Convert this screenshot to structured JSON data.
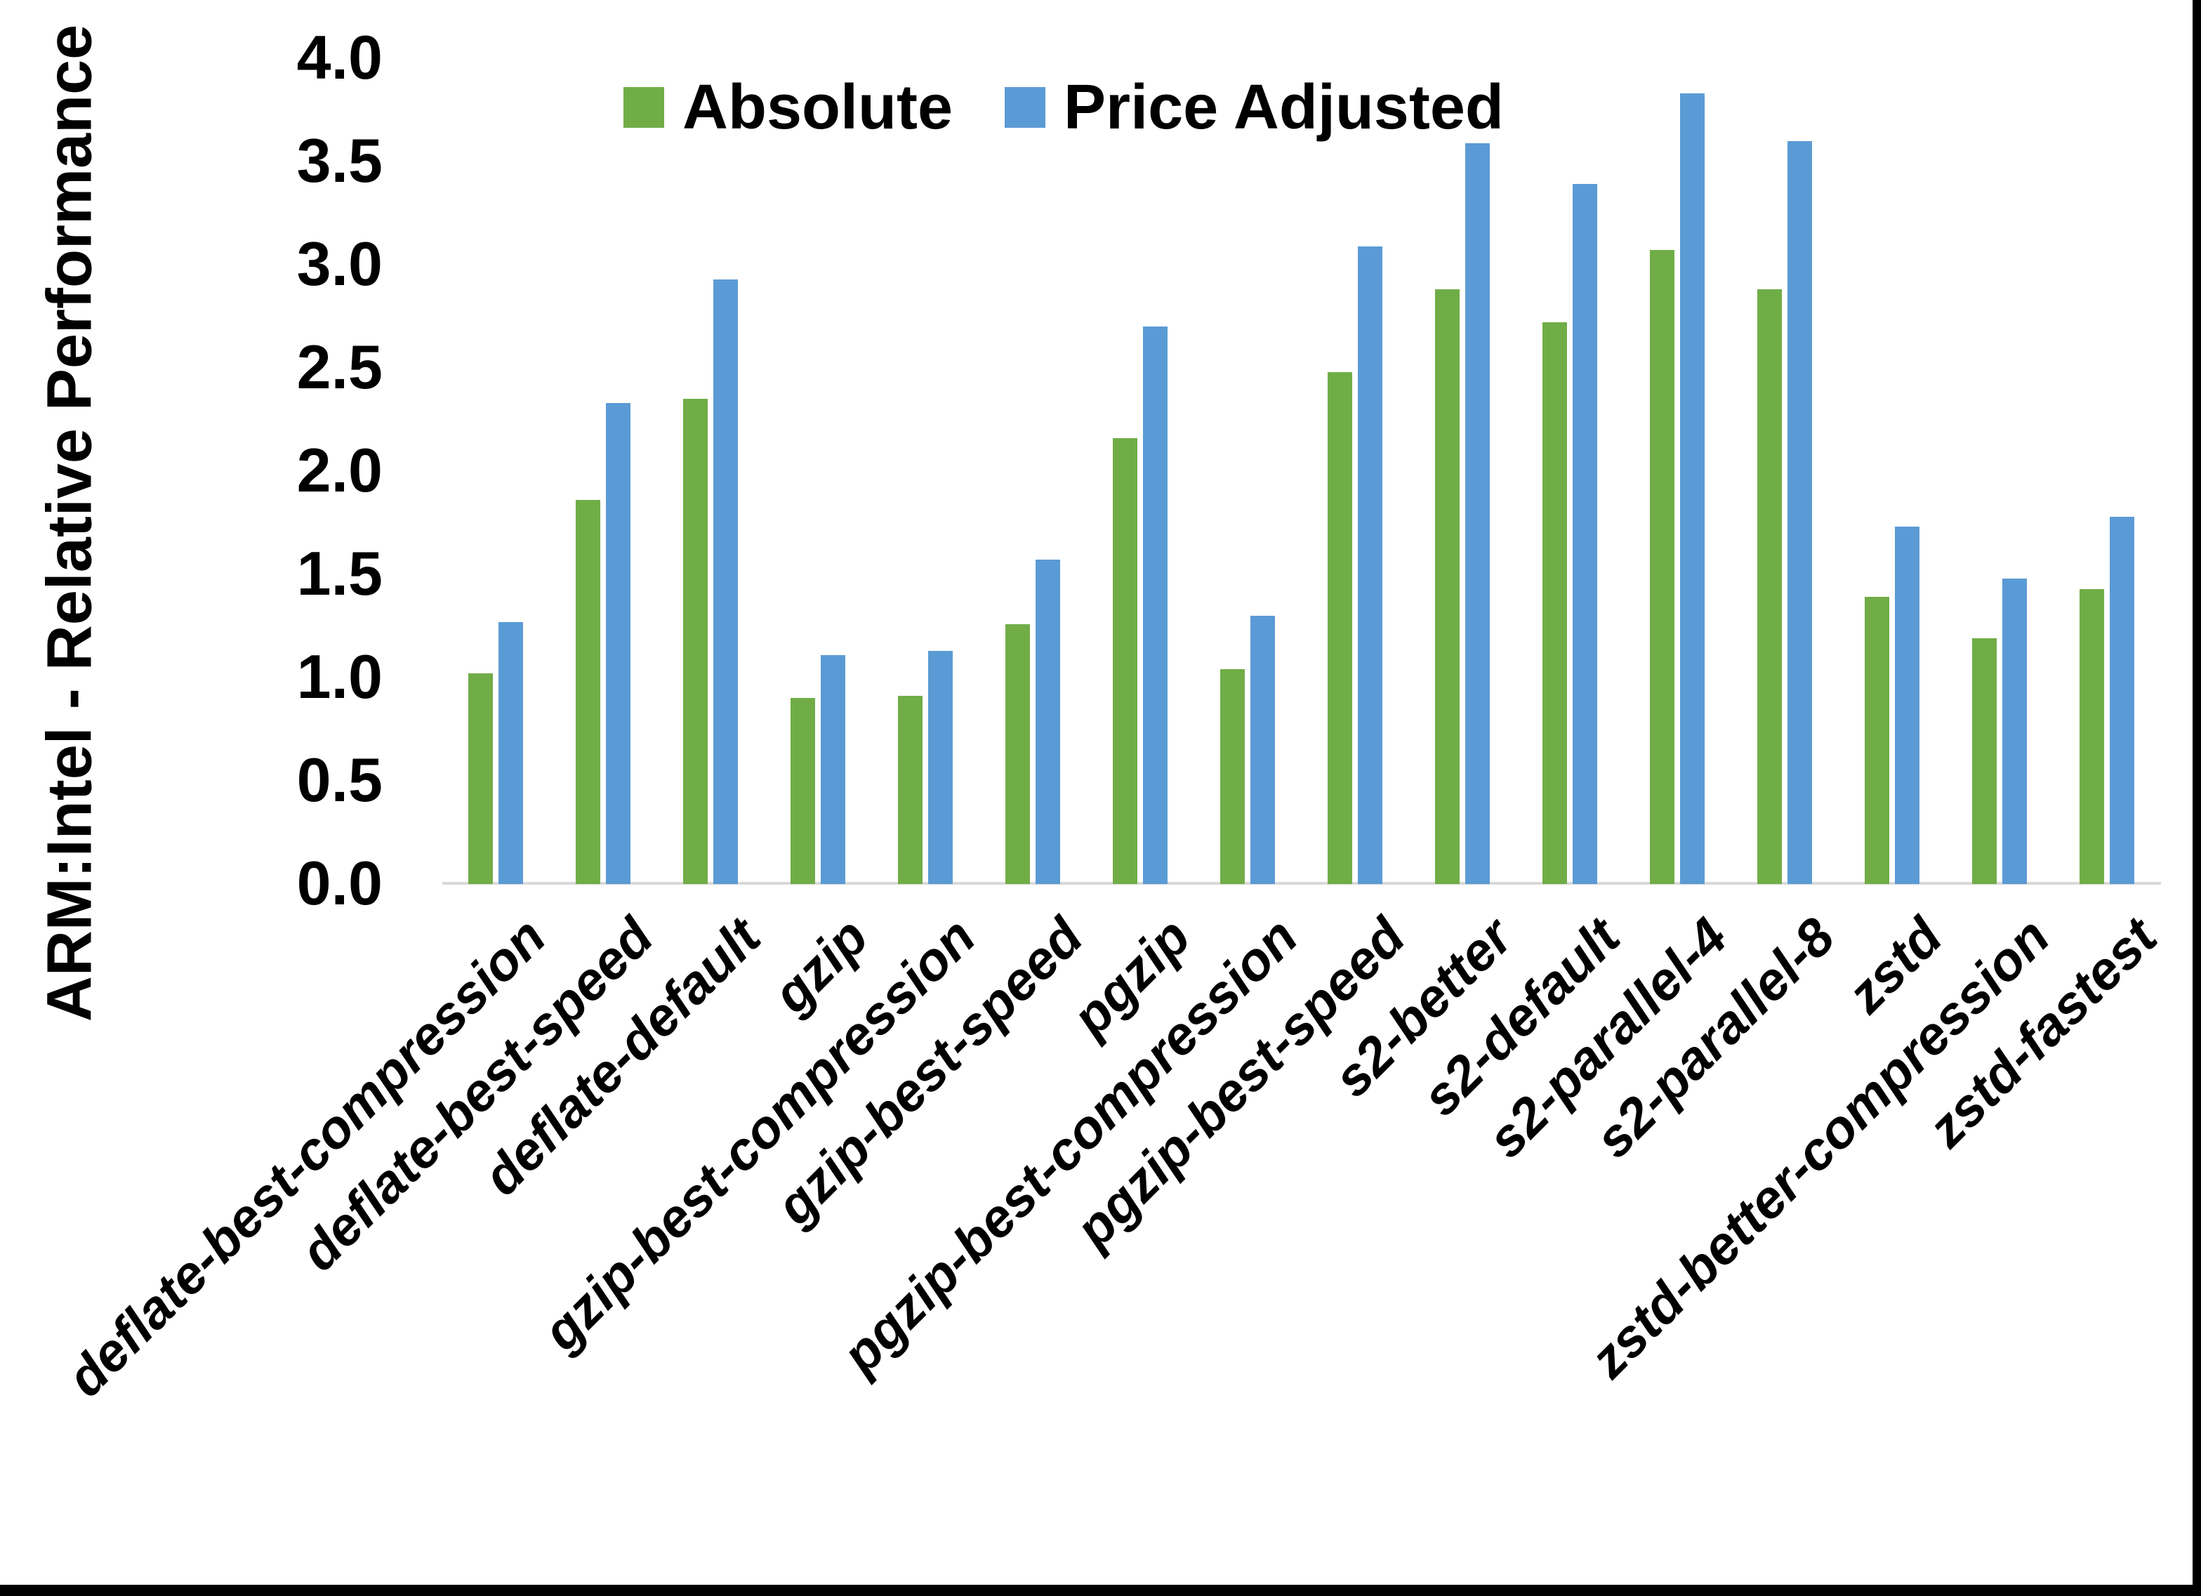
{
  "figure": {
    "background": "#ffffff",
    "border_color": "#000000",
    "axis_line_color": "#d9d9d9",
    "y_axis_title": "ARM:Intel - Relative Performance"
  },
  "legend": {
    "position": "top",
    "items": [
      {
        "label": "Absolute",
        "color": "#70AD47"
      },
      {
        "label": "Price Adjusted",
        "color": "#5B9BD5"
      }
    ]
  },
  "chart_data": {
    "type": "bar",
    "title": "",
    "xlabel": "",
    "ylabel": "ARM:Intel - Relative Performance",
    "ylim": [
      0.0,
      4.0
    ],
    "ytick_step": 0.5,
    "ytick_labels": [
      "0.0",
      "0.5",
      "1.0",
      "1.5",
      "2.0",
      "2.5",
      "3.0",
      "3.5",
      "4.0"
    ],
    "grid": false,
    "legend_position": "top",
    "categories": [
      "deflate-best-compression",
      "deflate-best-speed",
      "deflate-default",
      "gzip",
      "gzip-best-compression",
      "gzip-best-speed",
      "pgzip",
      "pgzip-best-compression",
      "pgzip-best-speed",
      "s2-better",
      "s2-default",
      "s2-parallel-4",
      "s2-parallel-8",
      "zstd",
      "zstd-better-compression",
      "zstd-fastest"
    ],
    "series": [
      {
        "name": "Absolute",
        "color": "#70AD47",
        "values": [
          1.02,
          1.86,
          2.35,
          0.9,
          0.91,
          1.26,
          2.16,
          1.04,
          2.48,
          2.88,
          2.72,
          3.07,
          2.88,
          1.39,
          1.19,
          1.43
        ]
      },
      {
        "name": "Price Adjusted",
        "color": "#5B9BD5",
        "values": [
          1.27,
          2.33,
          2.93,
          1.11,
          1.13,
          1.57,
          2.7,
          1.3,
          3.09,
          3.59,
          3.39,
          3.83,
          3.6,
          1.73,
          1.48,
          1.78
        ]
      }
    ]
  }
}
